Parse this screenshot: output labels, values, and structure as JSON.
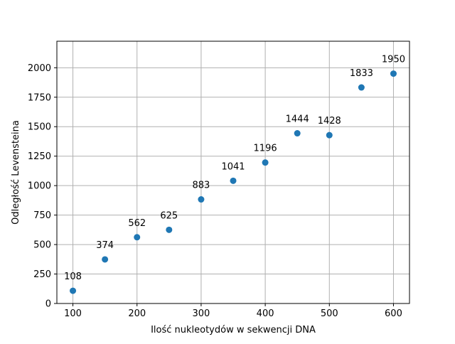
{
  "chart_data": {
    "type": "scatter",
    "title": "",
    "xlabel": "Ilość nukleotydów w sekwencji DNA",
    "ylabel": "Odległość Levensteina",
    "x": [
      100,
      150,
      200,
      250,
      300,
      350,
      400,
      450,
      500,
      550,
      600
    ],
    "y": [
      108,
      374,
      562,
      625,
      883,
      1041,
      1196,
      1444,
      1428,
      1833,
      1950
    ],
    "point_labels": [
      "108",
      "374",
      "562",
      "625",
      "883",
      "1041",
      "1196",
      "1444",
      "1428",
      "1833",
      "1950"
    ],
    "xlim": [
      75,
      625
    ],
    "ylim": [
      0,
      2225
    ],
    "xticks": [
      100,
      200,
      300,
      400,
      500,
      600
    ],
    "xtick_labels": [
      "100",
      "200",
      "300",
      "400",
      "500",
      "600"
    ],
    "yticks": [
      0,
      250,
      500,
      750,
      1000,
      1250,
      1500,
      1750,
      2000
    ],
    "ytick_labels": [
      "0",
      "250",
      "500",
      "750",
      "1000",
      "1250",
      "1500",
      "1750",
      "2000"
    ],
    "grid": true,
    "legend": "none",
    "colors": {
      "marker": "#1f77b4",
      "grid": "#b0b0b0",
      "axes": "#000000"
    }
  }
}
